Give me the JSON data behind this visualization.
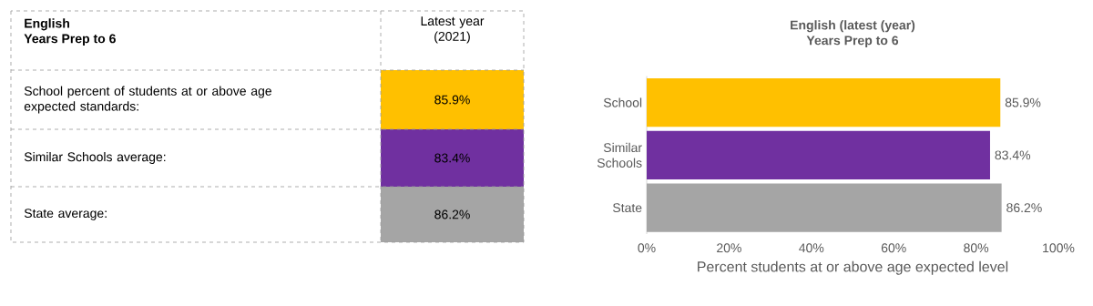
{
  "chart_data": [
    {
      "type": "other",
      "title": "English",
      "subtitle": "Years Prep to 6",
      "annotations": [
        "Latest year (2021)",
        "School percent of students at or above age expected standards:",
        "85.9%",
        "Similar Schools average:",
        "83.4%",
        "State average:",
        "86.2%"
      ],
      "colors": [
        "#ffc000",
        "#7030a0",
        "#a5a5a5"
      ]
    },
    {
      "type": "bar",
      "orientation": "horizontal",
      "title": "English (latest (year)",
      "subtitle": "Years Prep to 6",
      "categories": [
        "School",
        "Similar Schools",
        "State"
      ],
      "values": [
        85.9,
        83.4,
        86.2
      ],
      "value_labels": [
        "85.9%",
        "83.4%",
        "86.2%"
      ],
      "colors": [
        "#ffc000",
        "#7030a0",
        "#a5a5a5"
      ],
      "xlim": [
        0,
        100
      ],
      "xticks": [
        {
          "value": 0,
          "label": "0%"
        },
        {
          "value": 20,
          "label": "20%"
        },
        {
          "value": 40,
          "label": "40%"
        },
        {
          "value": 60,
          "label": "60%"
        },
        {
          "value": 80,
          "label": "80%"
        },
        {
          "value": 100,
          "label": "100%"
        }
      ],
      "xlabel": "Percent students at or above age expected level"
    }
  ]
}
